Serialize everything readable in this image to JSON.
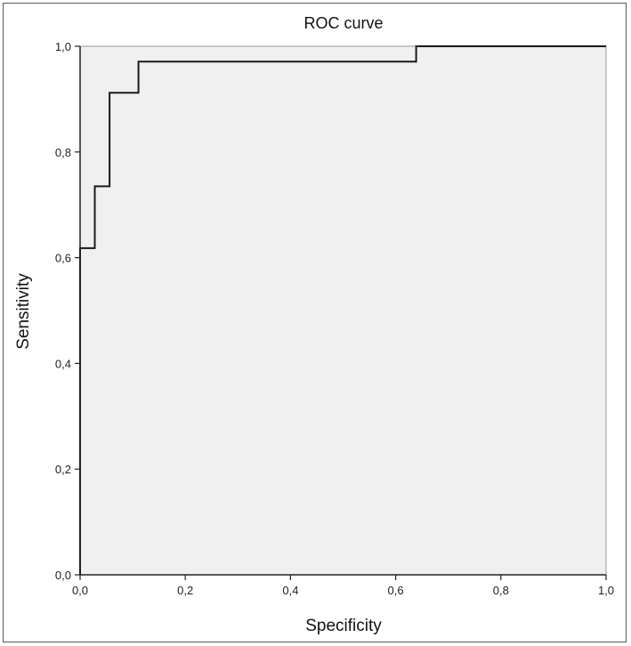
{
  "chart_data": {
    "type": "line",
    "title": "ROC curve",
    "xlabel": "Specificity",
    "ylabel": "Sensitivity",
    "xlim": [
      0,
      1
    ],
    "ylim": [
      0,
      1
    ],
    "x_ticks": [
      0,
      0.2,
      0.4,
      0.6,
      0.8,
      1.0
    ],
    "y_ticks": [
      0,
      0.2,
      0.4,
      0.6,
      0.8,
      1.0
    ],
    "x_tick_labels": [
      "0,0",
      "0,2",
      "0,4",
      "0,6",
      "0,8",
      "1,0"
    ],
    "y_tick_labels": [
      "0,0",
      "0,2",
      "0,4",
      "0,6",
      "0,8",
      "1,0"
    ],
    "grid": false,
    "series": [
      {
        "name": "ROC",
        "step": true,
        "x": [
          0,
          0,
          0.028,
          0.028,
          0.056,
          0.056,
          0.111,
          0.111,
          0.639,
          0.639,
          1.0
        ],
        "y": [
          0,
          0.618,
          0.618,
          0.735,
          0.735,
          0.912,
          0.912,
          0.971,
          0.971,
          1.0,
          1.0
        ]
      }
    ],
    "colors": {
      "plot_background": "#f0f0f0",
      "line": "#1a1a1a",
      "axis": "#222222"
    }
  }
}
